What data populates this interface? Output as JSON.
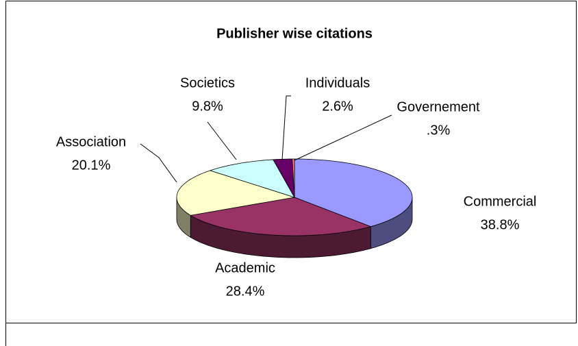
{
  "chart_data": {
    "type": "pie3d",
    "title": "Publisher wise citations",
    "categories": [
      "Commercial",
      "Academic",
      "Association",
      "Societics",
      "Individuals",
      "Governement"
    ],
    "values": [
      38.8,
      28.4,
      20.1,
      9.8,
      2.6,
      0.3
    ],
    "value_labels": [
      "38.8%",
      "28.4%",
      "20.1%",
      "9.8%",
      "2.6%",
      ".3%"
    ],
    "colors": [
      "#9999ff",
      "#993366",
      "#ffffcc",
      "#ccffff",
      "#660066",
      "#ff8080"
    ]
  }
}
